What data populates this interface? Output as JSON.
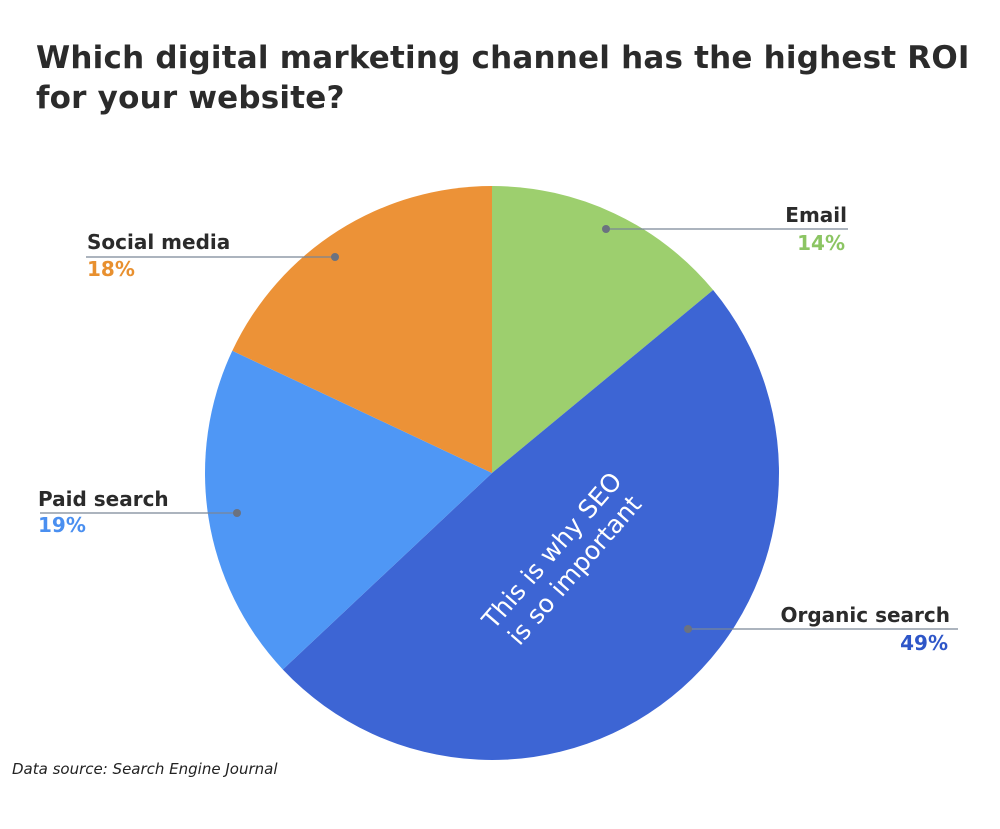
{
  "chart_data": {
    "type": "pie",
    "title": "Which digital marketing channel has the highest ROI for your website?",
    "slices": [
      {
        "label": "Email",
        "value": 14,
        "display": "14%",
        "color": "#9dcf6e",
        "label_color": "#8cc563"
      },
      {
        "label": "Organic search",
        "value": 49,
        "display": "49%",
        "color": "#3d65d4",
        "label_color": "#2e56c8"
      },
      {
        "label": "Paid search",
        "value": 19,
        "display": "19%",
        "color": "#4f97f5",
        "label_color": "#4a8ff0"
      },
      {
        "label": "Social media",
        "value": 18,
        "display": "18%",
        "color": "#ec9237",
        "label_color": "#e8902f"
      }
    ],
    "annotation": [
      "This is why SEO",
      "is so important"
    ],
    "source": "Data source: Search Engine Journal"
  },
  "title_lines": [
    "Which digital marketing channel has the highest ROI",
    "for your website?"
  ]
}
